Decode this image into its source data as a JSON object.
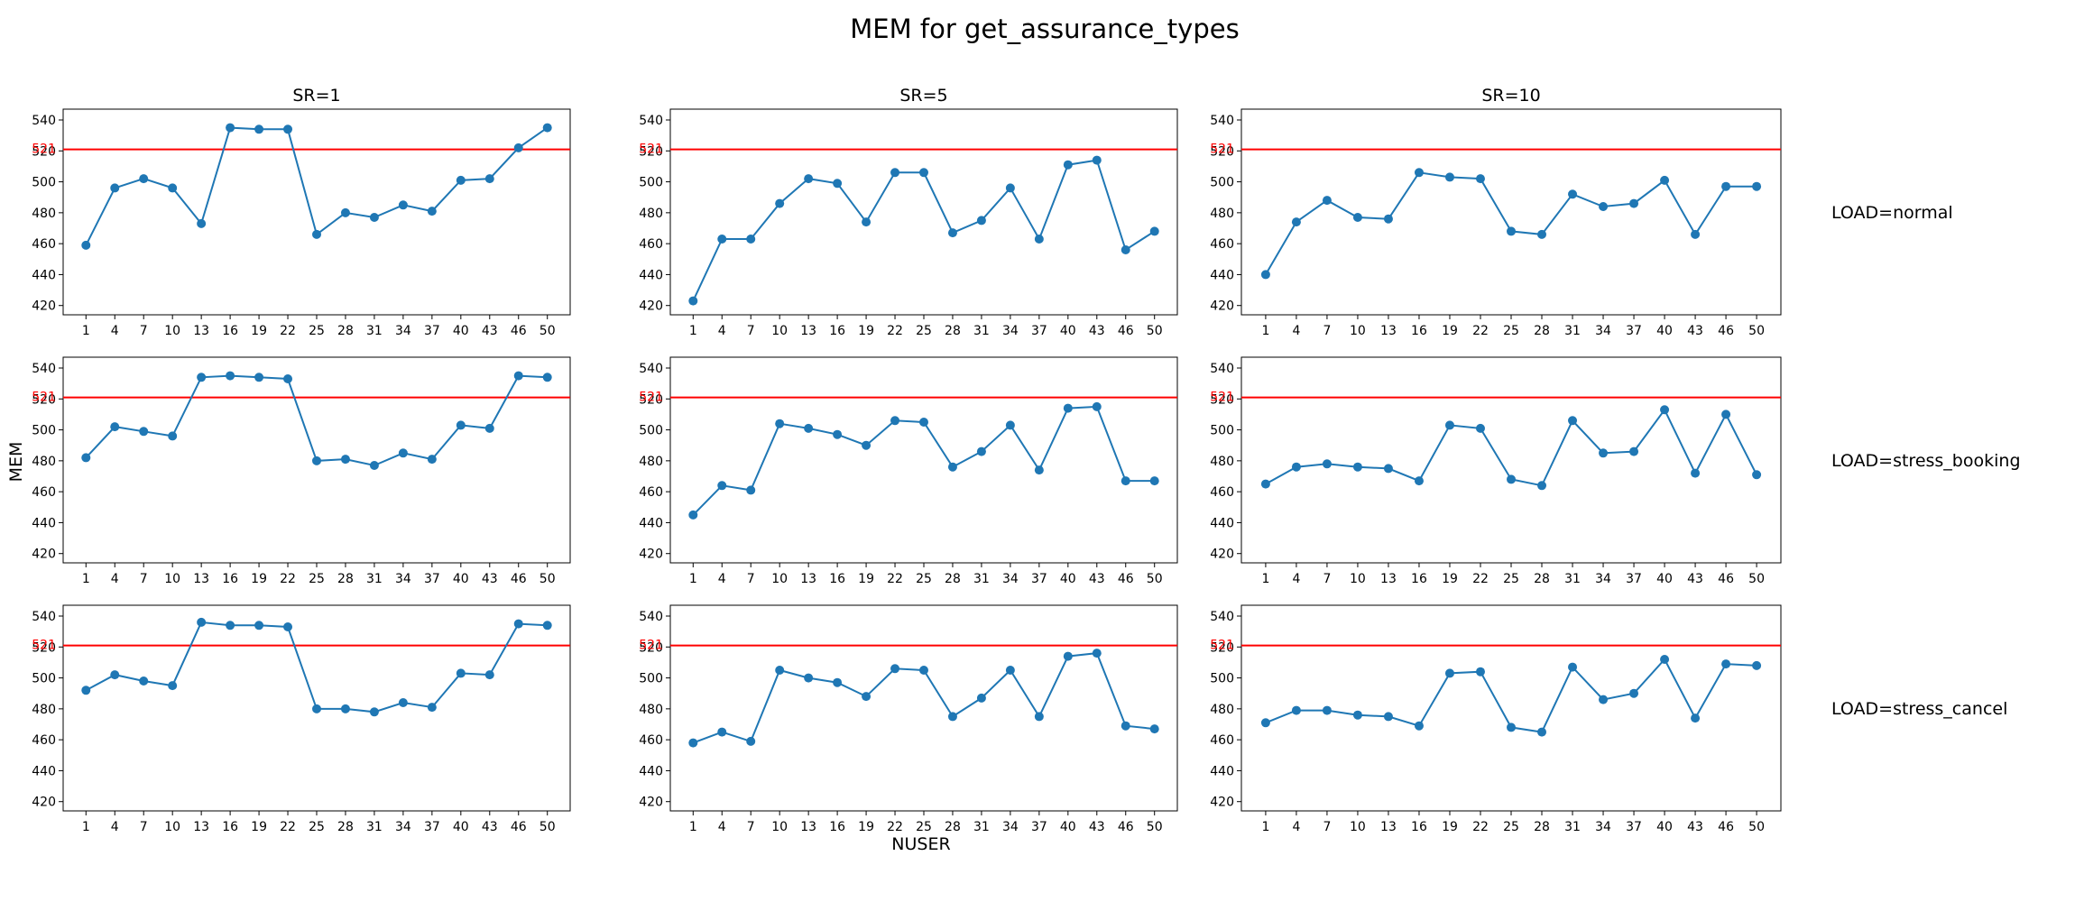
{
  "chart_data": {
    "type": "line",
    "title": "MEM for get_assurance_types",
    "xlabel": "NUSER",
    "ylabel": "MEM",
    "column_labels": [
      "SR=1",
      "SR=5",
      "SR=10"
    ],
    "row_labels": [
      "LOAD=normal",
      "LOAD=stress_booking",
      "LOAD=stress_cancel"
    ],
    "x": [
      1,
      4,
      7,
      10,
      13,
      16,
      19,
      22,
      25,
      28,
      31,
      34,
      37,
      40,
      43,
      46,
      50
    ],
    "x_tick_labels": [
      "1",
      "4",
      "7",
      "10",
      "13",
      "16",
      "19",
      "22",
      "25",
      "28",
      "31",
      "34",
      "37",
      "40",
      "43",
      "46",
      "50"
    ],
    "y_ticks": [
      420,
      440,
      460,
      480,
      500,
      520,
      540
    ],
    "y_tick_labels": [
      "420",
      "440",
      "460",
      "480",
      "500",
      "520",
      "540"
    ],
    "ylim": [
      414,
      547
    ],
    "threshold": {
      "value": 521,
      "label": "521",
      "color": "#ff0000"
    },
    "line_color": "#1f77b4",
    "grid": false,
    "panels": [
      {
        "row": 0,
        "col": 0,
        "values": [
          459,
          496,
          502,
          496,
          473,
          535,
          534,
          534,
          466,
          480,
          477,
          485,
          481,
          501,
          502,
          522,
          535
        ]
      },
      {
        "row": 0,
        "col": 1,
        "values": [
          423,
          463,
          463,
          486,
          502,
          499,
          474,
          506,
          506,
          467,
          475,
          496,
          463,
          511,
          514,
          456,
          468
        ]
      },
      {
        "row": 0,
        "col": 2,
        "values": [
          440,
          474,
          488,
          477,
          476,
          506,
          503,
          502,
          468,
          466,
          492,
          484,
          486,
          501,
          466,
          497,
          497
        ]
      },
      {
        "row": 1,
        "col": 0,
        "values": [
          482,
          502,
          499,
          496,
          534,
          535,
          534,
          533,
          480,
          481,
          477,
          485,
          481,
          503,
          501,
          535,
          534
        ]
      },
      {
        "row": 1,
        "col": 1,
        "values": [
          445,
          464,
          461,
          504,
          501,
          497,
          490,
          506,
          505,
          476,
          486,
          503,
          474,
          514,
          515,
          467,
          467
        ]
      },
      {
        "row": 1,
        "col": 2,
        "values": [
          465,
          476,
          478,
          476,
          475,
          467,
          503,
          501,
          468,
          464,
          506,
          485,
          486,
          513,
          472,
          510,
          471
        ]
      },
      {
        "row": 2,
        "col": 0,
        "values": [
          492,
          502,
          498,
          495,
          536,
          534,
          534,
          533,
          480,
          480,
          478,
          484,
          481,
          503,
          502,
          535,
          534
        ]
      },
      {
        "row": 2,
        "col": 1,
        "values": [
          458,
          465,
          459,
          505,
          500,
          497,
          488,
          506,
          505,
          475,
          487,
          505,
          475,
          514,
          516,
          469,
          467
        ]
      },
      {
        "row": 2,
        "col": 2,
        "values": [
          471,
          479,
          479,
          476,
          475,
          469,
          503,
          504,
          468,
          465,
          507,
          486,
          490,
          512,
          474,
          509,
          508
        ]
      }
    ]
  }
}
